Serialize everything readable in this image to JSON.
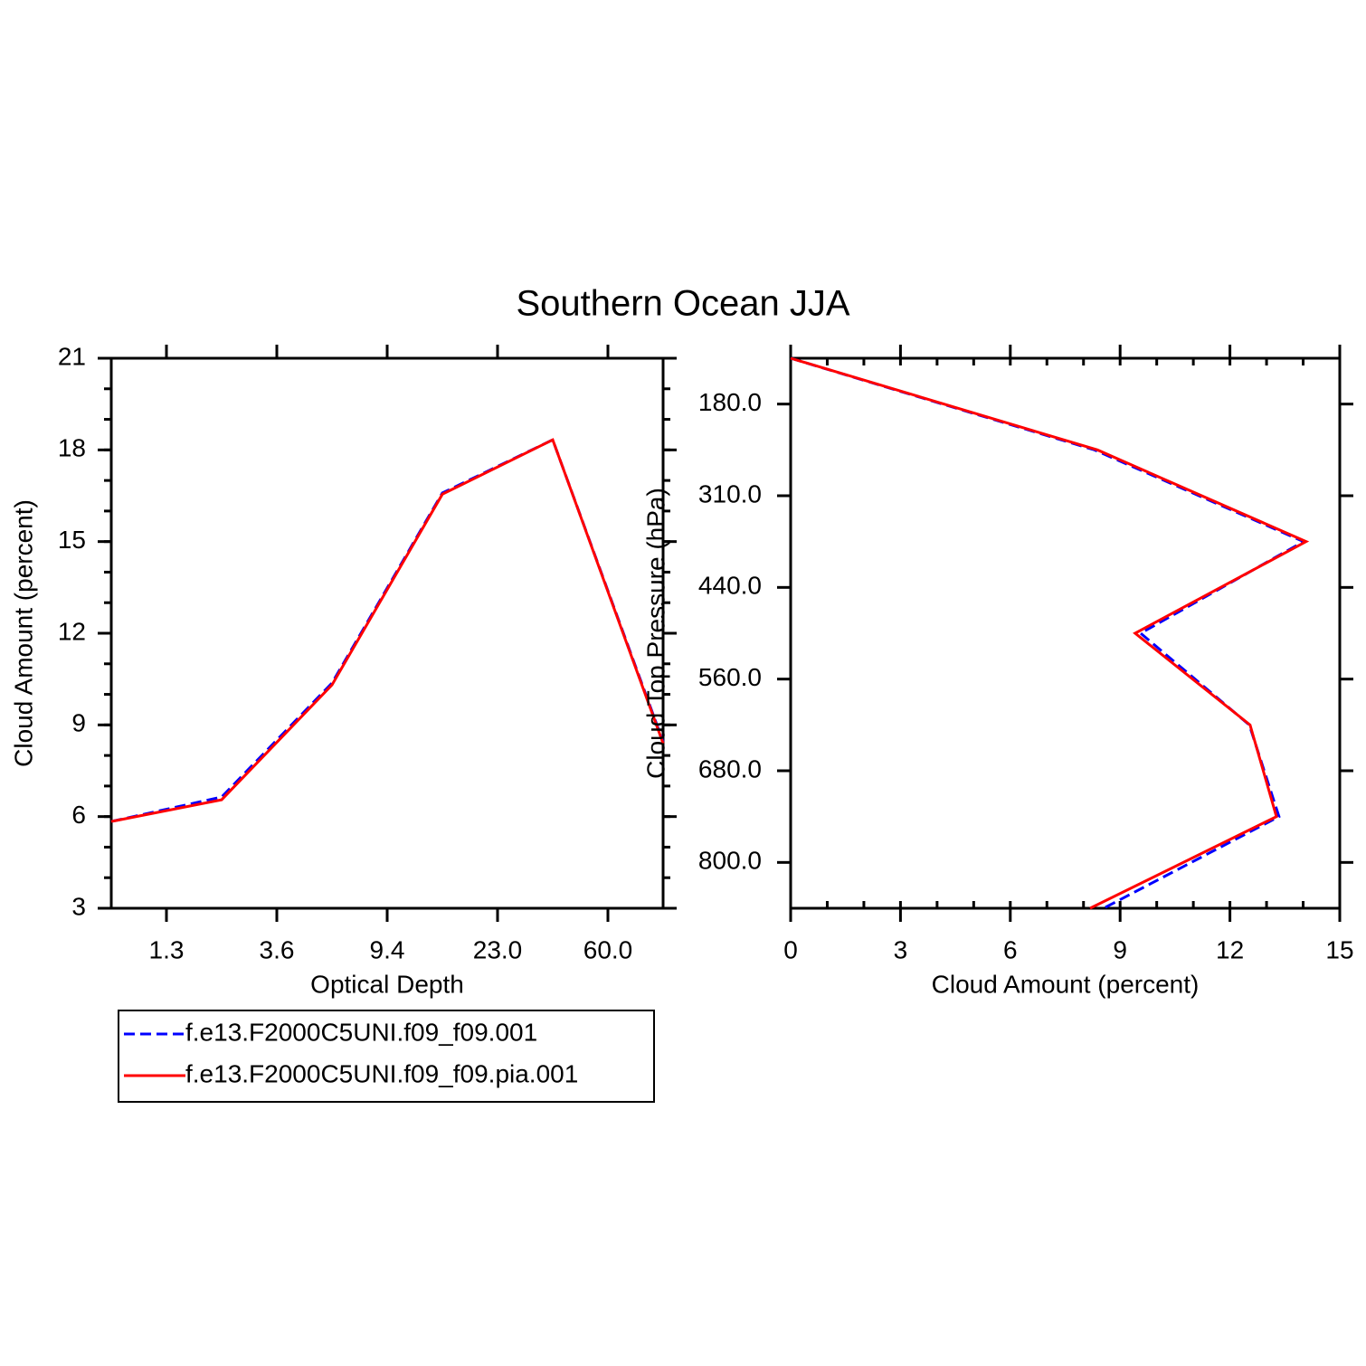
{
  "title": "Southern Ocean JJA",
  "chart_data": [
    {
      "type": "line",
      "xlabel": "Optical Depth",
      "ylabel": "Cloud Amount (percent)",
      "x": [
        0,
        1,
        2,
        3,
        4,
        5
      ],
      "xlim": [
        0,
        5
      ],
      "xticks": [
        {
          "value": 0.5,
          "label": "1.3"
        },
        {
          "value": 1.5,
          "label": "3.6"
        },
        {
          "value": 2.5,
          "label": "9.4"
        },
        {
          "value": 3.5,
          "label": "23.0"
        },
        {
          "value": 4.5,
          "label": "60.0"
        }
      ],
      "ylim": [
        3,
        21
      ],
      "yticks": [
        3,
        6,
        9,
        12,
        15,
        18,
        21
      ],
      "minor_tick_step": 1,
      "series": [
        {
          "name": "f.e13.F2000C5UNI.f09_f09.001",
          "color": "#0000ff",
          "dash": true,
          "values": [
            5.84,
            6.64,
            10.37,
            16.59,
            18.33,
            8.45
          ]
        },
        {
          "name": "f.e13.F2000C5UNI.f09_f09.pia.001",
          "color": "#ff0000",
          "dash": false,
          "values": [
            5.84,
            6.55,
            10.31,
            16.55,
            18.33,
            8.4
          ]
        }
      ]
    },
    {
      "type": "line",
      "orientation": "horizontal",
      "xlabel": "Cloud Amount (percent)",
      "ylabel": "Cloud Top Pressure (hPa)",
      "y": [
        0,
        1,
        2,
        3,
        4,
        5,
        6
      ],
      "ylim": [
        6,
        0
      ],
      "yticks": [
        {
          "value": 0.5,
          "label": "180.0"
        },
        {
          "value": 1.5,
          "label": "310.0"
        },
        {
          "value": 2.5,
          "label": "440.0"
        },
        {
          "value": 3.5,
          "label": "560.0"
        },
        {
          "value": 4.5,
          "label": "680.0"
        },
        {
          "value": 5.5,
          "label": "800.0"
        }
      ],
      "xlim": [
        0,
        15
      ],
      "xticks": [
        0,
        3,
        6,
        9,
        12,
        15
      ],
      "minor_tick_step": 1,
      "series": [
        {
          "color": "#0000ff",
          "dash": true,
          "values": [
            0,
            8.3,
            14.01,
            9.56,
            12.53,
            13.34,
            8.55
          ]
        },
        {
          "color": "#ff0000",
          "dash": false,
          "values": [
            0,
            8.38,
            14.08,
            9.41,
            12.55,
            13.27,
            8.18
          ]
        }
      ]
    }
  ]
}
